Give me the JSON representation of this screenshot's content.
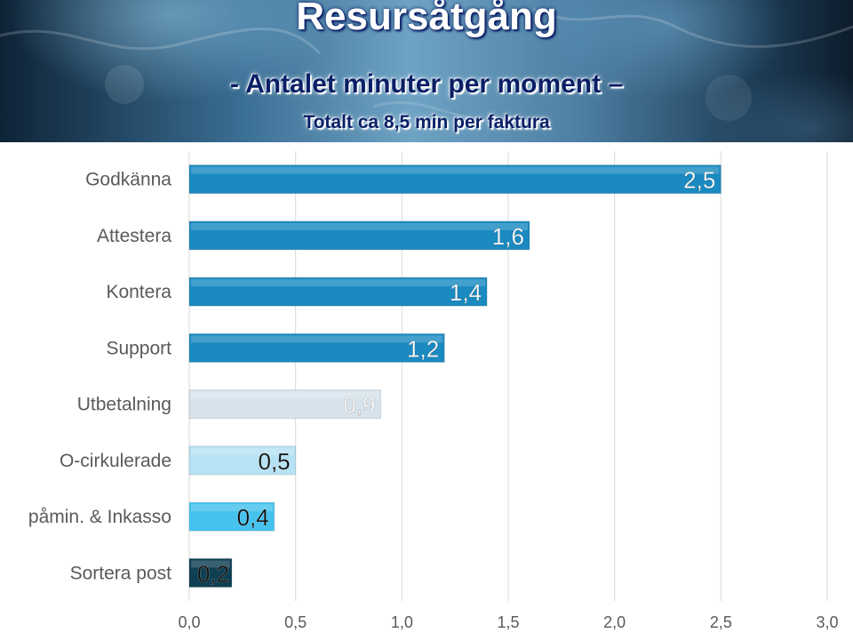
{
  "header": {
    "title": "Resursåtgång",
    "subtitle": "- Antalet minuter per moment –",
    "subtitle2": "Totalt ca 8,5 min per faktura"
  },
  "chart_data": {
    "type": "bar",
    "orientation": "horizontal",
    "categories": [
      "Godkänna",
      "Attestera",
      "Kontera",
      "Support",
      "Utbetalning",
      "O-cirkulerade",
      "påmin. & Inkasso",
      "Sortera post"
    ],
    "values": [
      2.5,
      1.6,
      1.4,
      1.2,
      0.9,
      0.5,
      0.4,
      0.2
    ],
    "value_labels": [
      "2,5",
      "1,6",
      "1,4",
      "1,2",
      "0,9",
      "0,5",
      "0,4",
      "0,2"
    ],
    "bar_colors": [
      "#1a8ac0",
      "#1a8ac0",
      "#1a8ac0",
      "#1a8ac0",
      "#d6e3ec",
      "#b7e2f4",
      "#45c3ee",
      "#0f3f52"
    ],
    "label_colors": [
      "#ffffff",
      "#ffffff",
      "#ffffff",
      "#ffffff",
      "#ffffff",
      "#0a0a0a",
      "#0a0a0a",
      "#0a0a0a"
    ],
    "xlim": [
      0,
      3
    ],
    "x_ticks": [
      0,
      0.5,
      1,
      1.5,
      2,
      2.5,
      3
    ],
    "x_tick_labels": [
      "0,0",
      "0,5",
      "1,0",
      "1,5",
      "2,0",
      "2,5",
      "3,0"
    ],
    "grid": true,
    "legend": "none"
  }
}
